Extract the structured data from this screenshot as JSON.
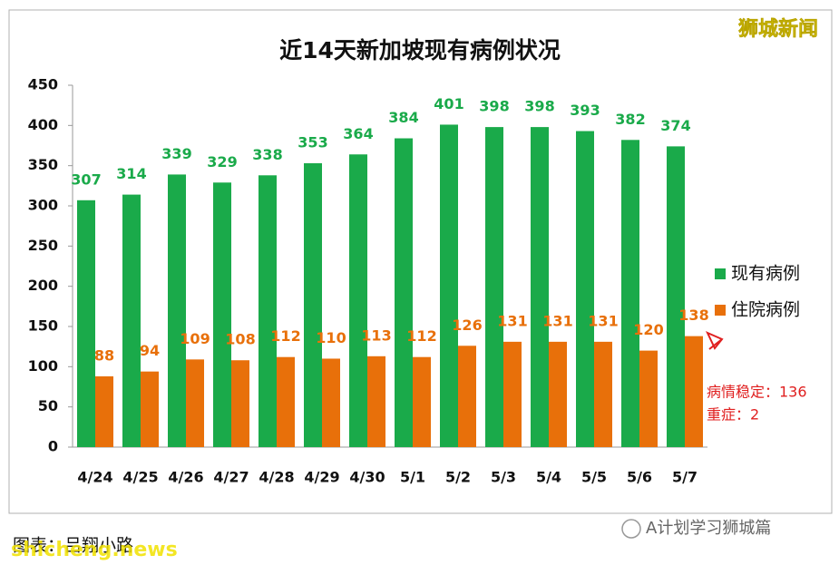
{
  "chart_data": {
    "type": "bar",
    "title": "近14天新加坡现有病例状况",
    "categories": [
      "4/24",
      "4/25",
      "4/26",
      "4/27",
      "4/28",
      "4/29",
      "4/30",
      "5/1",
      "5/2",
      "5/3",
      "5/4",
      "5/5",
      "5/6",
      "5/7"
    ],
    "series": [
      {
        "name": "现有病例",
        "color": "#1aaa4a",
        "values": [
          307,
          314,
          339,
          329,
          338,
          353,
          364,
          384,
          401,
          398,
          398,
          393,
          382,
          374
        ]
      },
      {
        "name": "住院病例",
        "color": "#e8700a",
        "values": [
          88,
          94,
          109,
          108,
          112,
          110,
          113,
          112,
          126,
          131,
          131,
          131,
          120,
          138
        ]
      }
    ],
    "ylim": [
      0,
      450
    ],
    "yticks": [
      0,
      50,
      100,
      150,
      200,
      250,
      300,
      350,
      400,
      450
    ],
    "grid": false,
    "legend": "right",
    "annotations": [
      "病情稳定：136",
      "重症：2"
    ]
  },
  "brand": "狮城新闻",
  "footer": "图表：吕翔小路",
  "watermark": "shicheng.news",
  "account": "A计划学习狮城篇"
}
